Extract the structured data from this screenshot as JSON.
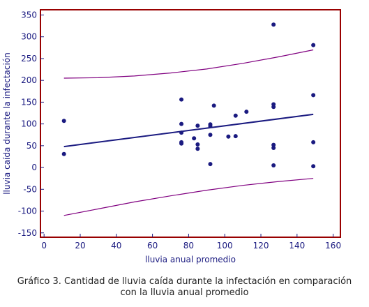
{
  "chart_data": {
    "type": "scatter",
    "title": "",
    "xlabel": "lluvia anual promedio",
    "ylabel": "lluvia caída durante la infectación",
    "xlim": [
      -2,
      164
    ],
    "ylim": [
      -160,
      362
    ],
    "xticks": [
      0,
      20,
      40,
      60,
      80,
      100,
      120,
      140,
      160
    ],
    "yticks": [
      -150,
      -100,
      -50,
      0,
      50,
      100,
      150,
      200,
      250,
      300,
      350
    ],
    "grid": false,
    "points": [
      {
        "x": 11,
        "y": 107
      },
      {
        "x": 11,
        "y": 31
      },
      {
        "x": 76,
        "y": 156
      },
      {
        "x": 76,
        "y": 100
      },
      {
        "x": 76,
        "y": 80
      },
      {
        "x": 76,
        "y": 58
      },
      {
        "x": 76,
        "y": 55
      },
      {
        "x": 83,
        "y": 67
      },
      {
        "x": 85,
        "y": 96
      },
      {
        "x": 85,
        "y": 53
      },
      {
        "x": 85,
        "y": 43
      },
      {
        "x": 92,
        "y": 99
      },
      {
        "x": 92,
        "y": 95
      },
      {
        "x": 92,
        "y": 75
      },
      {
        "x": 92,
        "y": 8
      },
      {
        "x": 94,
        "y": 142
      },
      {
        "x": 102,
        "y": 71
      },
      {
        "x": 106,
        "y": 119
      },
      {
        "x": 106,
        "y": 72
      },
      {
        "x": 112,
        "y": 128
      },
      {
        "x": 127,
        "y": 328
      },
      {
        "x": 127,
        "y": 145
      },
      {
        "x": 127,
        "y": 139
      },
      {
        "x": 127,
        "y": 52
      },
      {
        "x": 127,
        "y": 45
      },
      {
        "x": 127,
        "y": 5
      },
      {
        "x": 149,
        "y": 281
      },
      {
        "x": 149,
        "y": 166
      },
      {
        "x": 149,
        "y": 58
      },
      {
        "x": 149,
        "y": 3
      }
    ],
    "fit_line": [
      {
        "x": 11,
        "y": 48
      },
      {
        "x": 149,
        "y": 122
      }
    ],
    "upper_band": [
      {
        "x": 11,
        "y": 205
      },
      {
        "x": 30,
        "y": 206
      },
      {
        "x": 50,
        "y": 210
      },
      {
        "x": 70,
        "y": 217
      },
      {
        "x": 90,
        "y": 226
      },
      {
        "x": 110,
        "y": 239
      },
      {
        "x": 130,
        "y": 254
      },
      {
        "x": 149,
        "y": 270
      }
    ],
    "lower_band": [
      {
        "x": 11,
        "y": -110
      },
      {
        "x": 30,
        "y": -95
      },
      {
        "x": 50,
        "y": -79
      },
      {
        "x": 70,
        "y": -65
      },
      {
        "x": 90,
        "y": -52
      },
      {
        "x": 110,
        "y": -41
      },
      {
        "x": 130,
        "y": -32
      },
      {
        "x": 149,
        "y": -25
      }
    ],
    "colors": {
      "frame": "#990000",
      "points": "#1a1a80",
      "fit_line": "#1a1a80",
      "band": "#800080",
      "text": "#1a1a80"
    }
  },
  "caption": {
    "line1": "Gráfico 3. Cantidad de lluvia caída durante la infectación en comparación",
    "line2": "con la lluvia anual promedio"
  }
}
